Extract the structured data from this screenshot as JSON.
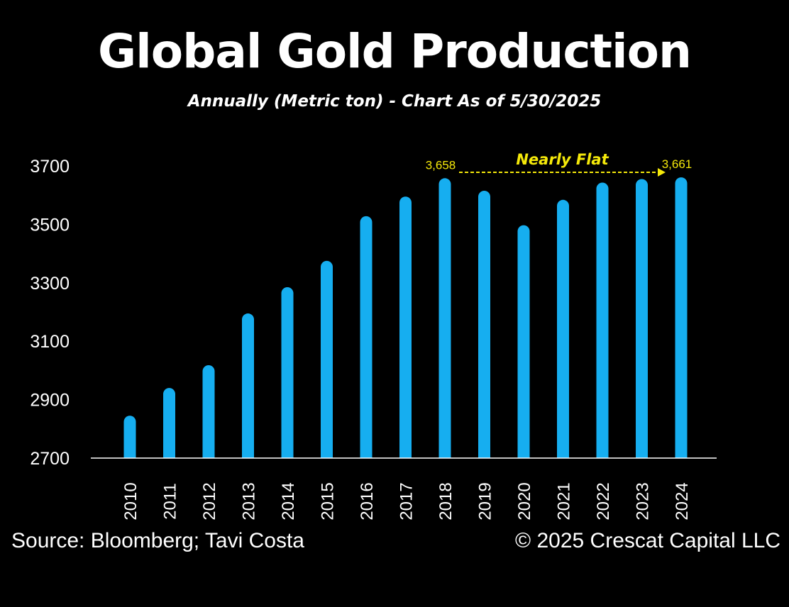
{
  "header": {
    "title": "Global Gold Production",
    "subtitle": "Annually (Metric ton) - Chart As of 5/30/2025"
  },
  "footer": {
    "source": "Source: Bloomberg; Tavi Costa",
    "copyright": "© 2025 Crescat Capital LLC"
  },
  "chart_data": {
    "type": "bar",
    "title": "Global Gold Production",
    "subtitle": "Annually (Metric ton) - Chart As of 5/30/2025",
    "categories": [
      "2010",
      "2011",
      "2012",
      "2013",
      "2014",
      "2015",
      "2016",
      "2017",
      "2018",
      "2019",
      "2020",
      "2021",
      "2022",
      "2023",
      "2024"
    ],
    "values": [
      2845,
      2940,
      3018,
      3195,
      3285,
      3375,
      3528,
      3595,
      3658,
      3615,
      3497,
      3584,
      3643,
      3655,
      3661
    ],
    "xlabel": "",
    "ylabel": "",
    "ylim": [
      2700,
      3700
    ],
    "yticks": [
      2700,
      2900,
      3100,
      3300,
      3500,
      3700
    ],
    "grid": false,
    "data_labels": [
      {
        "category": "2018",
        "text": "3,658"
      },
      {
        "category": "2024",
        "text": "3,661"
      }
    ],
    "annotation": {
      "text": "Nearly Flat",
      "from": "2018",
      "to": "2024",
      "style": "dashed-arrow"
    },
    "colors": {
      "bar": "#16aef0",
      "annotation": "#f5e90a",
      "axis": "#ffffff",
      "background": "#000000"
    }
  }
}
